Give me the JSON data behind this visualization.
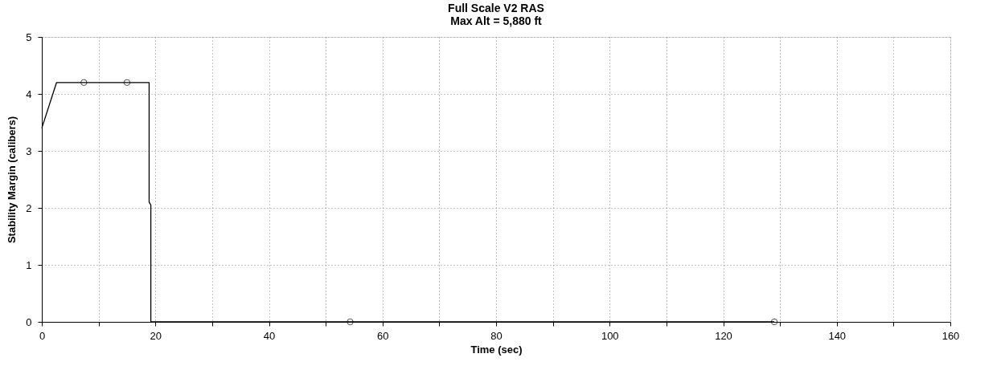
{
  "chart_data": {
    "type": "line",
    "title": "Full Scale V2 RAS",
    "subtitle": "Max Alt = 5,880 ft",
    "xlabel": "Time (sec)",
    "ylabel": "Stability Margin (calibers)",
    "series": [
      {
        "type": "line",
        "color": "#000000",
        "x": [
          0,
          2.6,
          18.9,
          18.9,
          19.2,
          19.2,
          129
        ],
        "values": [
          3.4,
          4.2,
          4.2,
          2.1,
          2.05,
          0,
          0
        ],
        "marker": "none"
      },
      {
        "type": "scatter",
        "color": "#000000",
        "x": [
          7.4,
          15,
          54.3,
          129
        ],
        "values": [
          4.2,
          4.2,
          0,
          0
        ],
        "marker": "circle"
      }
    ],
    "xlim": [
      0,
      160
    ],
    "ylim": [
      0,
      5
    ],
    "xticks": [
      0,
      {
        "value": 10,
        "label": null
      },
      20,
      {
        "value": 30,
        "label": null
      },
      40,
      {
        "value": 50,
        "label": null
      },
      60,
      {
        "value": 70,
        "label": null
      },
      80,
      {
        "value": 90,
        "label": null
      },
      100,
      {
        "value": 110,
        "label": null
      },
      120,
      {
        "value": 130,
        "label": null
      },
      140,
      {
        "value": 150,
        "label": null
      },
      160
    ],
    "yticks": [
      0,
      1,
      2,
      3,
      4,
      5
    ],
    "grid": true,
    "legend": false,
    "line_style": "solid"
  }
}
